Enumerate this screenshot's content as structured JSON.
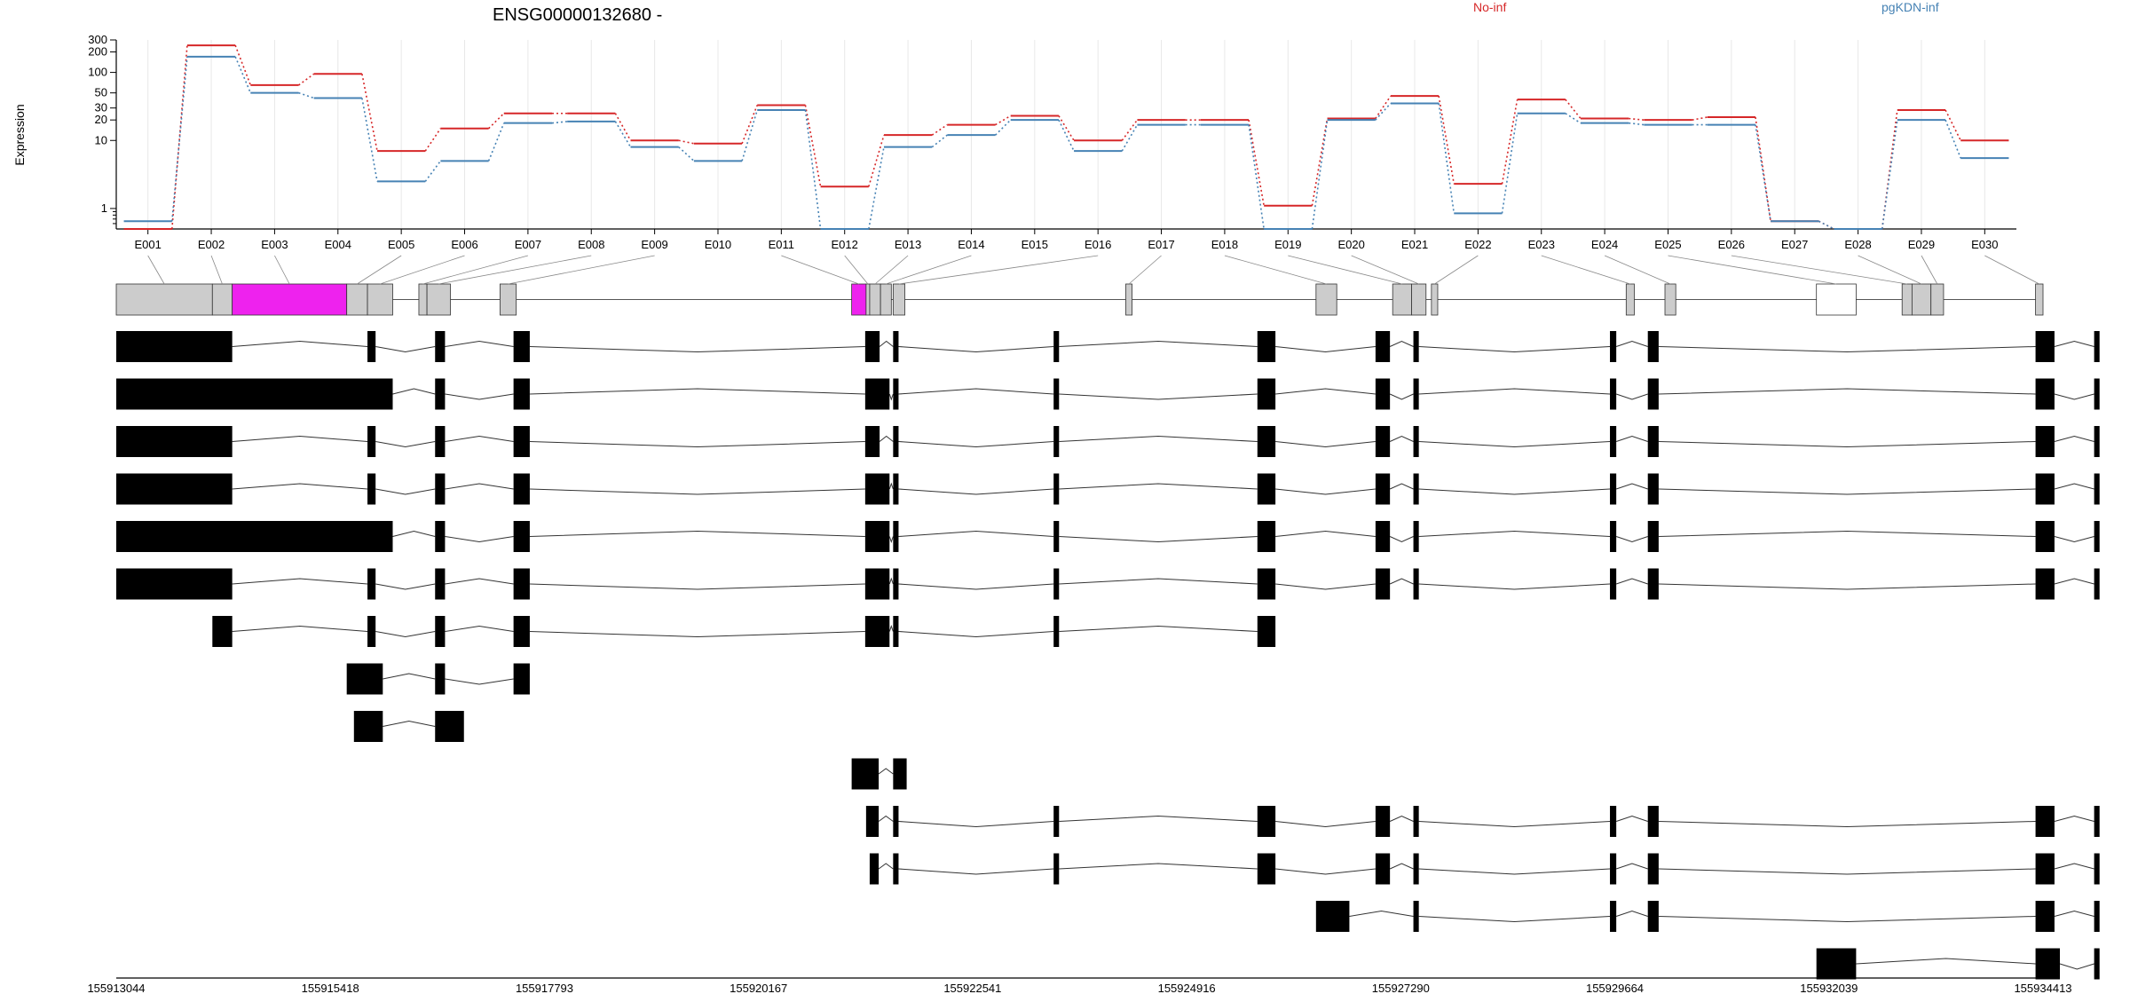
{
  "chart_data": {
    "type": "line",
    "title": "ENSG00000132680 -",
    "ylabel": "Expression",
    "yscale": "log",
    "ylim": [
      0.5,
      300
    ],
    "yticks": [
      "1",
      "10",
      "20",
      "30",
      "50",
      "100",
      "200",
      "300"
    ],
    "ytick_values": [
      1,
      10,
      20,
      30,
      50,
      100,
      200,
      300
    ],
    "categories": [
      "E001",
      "E002",
      "E003",
      "E004",
      "E005",
      "E006",
      "E007",
      "E008",
      "E009",
      "E010",
      "E011",
      "E012",
      "E013",
      "E014",
      "E015",
      "E016",
      "E017",
      "E018",
      "E019",
      "E020",
      "E021",
      "E022",
      "E023",
      "E024",
      "E025",
      "E026",
      "E027",
      "E028",
      "E029",
      "E030"
    ],
    "legend_position": "top",
    "series": [
      {
        "name": "No-inf",
        "color": "#d62728",
        "values": [
          0.5,
          250,
          65,
          95,
          7,
          15,
          25,
          25,
          10,
          9,
          33,
          2.1,
          12,
          17,
          23,
          10,
          20,
          20,
          1.1,
          21,
          45,
          2.3,
          40,
          21,
          20,
          22,
          0.65,
          0.5,
          28,
          10
        ]
      },
      {
        "name": "pgKDN-inf",
        "color": "#4682b4",
        "values": [
          0.65,
          170,
          50,
          42,
          2.5,
          5,
          18,
          19,
          8,
          5,
          28,
          0.5,
          8,
          12,
          20,
          7,
          17,
          17,
          0.5,
          20,
          35,
          0.85,
          25,
          18,
          17,
          17,
          0.65,
          0.5,
          20,
          5.5
        ]
      }
    ],
    "gene_model": {
      "coordinate_ticks": [
        "155913044",
        "155915418",
        "155917793",
        "155920167",
        "155922541",
        "155924916",
        "155927290",
        "155929664",
        "155932039",
        "155934413"
      ],
      "coordinate_values": [
        155913044,
        155915418,
        155917793,
        155920167,
        155922541,
        155924916,
        155927290,
        155929664,
        155932039,
        155934413
      ],
      "exon_bins": [
        [
          155913044,
          155914110
        ],
        [
          155914110,
          155914330
        ],
        [
          155914330,
          155915600
        ],
        [
          155915600,
          155915830
        ],
        [
          155915830,
          155916110
        ],
        [
          155916400,
          155916490
        ],
        [
          155916490,
          155916750
        ],
        [
          155917300,
          155917480
        ],
        [
          155921200,
          155921360
        ],
        [
          155921360,
          155921400
        ],
        [
          155921400,
          155921520
        ],
        [
          155921520,
          155921640
        ],
        [
          155921660,
          155921790
        ],
        [
          155924240,
          155924310
        ],
        [
          155926350,
          155926580
        ],
        [
          155927200,
          155927410
        ],
        [
          155927410,
          155927570
        ],
        [
          155927630,
          155927700
        ],
        [
          155929790,
          155929880
        ],
        [
          155930220,
          155930340
        ],
        [
          155931900,
          155932340
        ],
        [
          155932850,
          155932960
        ],
        [
          155932960,
          155933170
        ],
        [
          155933170,
          155933310
        ],
        [
          155934330,
          155934413
        ]
      ],
      "bin_colors": [
        "#cccccc",
        "#cccccc",
        "#ee22ee",
        "#cccccc",
        "#cccccc",
        "#cccccc",
        "#cccccc",
        "#cccccc",
        "#ee22ee",
        "#cccccc",
        "#cccccc",
        "#cccccc",
        "#cccccc",
        "#cccccc",
        "#cccccc",
        "#cccccc",
        "#cccccc",
        "#cccccc",
        "#cccccc",
        "#cccccc",
        "#ffffff",
        "#cccccc",
        "#cccccc",
        "#cccccc",
        "#cccccc"
      ],
      "transcripts": [
        [
          [
            155913044,
            155914330
          ],
          [
            155915830,
            155915920
          ],
          [
            155916580,
            155916690
          ],
          [
            155917450,
            155917630
          ],
          [
            155921350,
            155921510
          ],
          [
            155921660,
            155921720
          ],
          [
            155923440,
            155923500
          ],
          [
            155925700,
            155925900
          ],
          [
            155927010,
            155927170
          ],
          [
            155927430,
            155927490
          ],
          [
            155929610,
            155929680
          ],
          [
            155930030,
            155930150
          ],
          [
            155934330,
            155934540
          ],
          [
            155934980,
            155935040
          ]
        ],
        [
          [
            155913044,
            155916110
          ],
          [
            155916580,
            155916690
          ],
          [
            155917450,
            155917630
          ],
          [
            155921350,
            155921620
          ],
          [
            155921660,
            155921720
          ],
          [
            155923440,
            155923500
          ],
          [
            155925700,
            155925900
          ],
          [
            155927010,
            155927170
          ],
          [
            155927430,
            155927490
          ],
          [
            155929610,
            155929680
          ],
          [
            155930030,
            155930150
          ],
          [
            155934330,
            155934540
          ],
          [
            155934980,
            155935040
          ]
        ],
        [
          [
            155913044,
            155914330
          ],
          [
            155915830,
            155915920
          ],
          [
            155916580,
            155916690
          ],
          [
            155917450,
            155917630
          ],
          [
            155921350,
            155921510
          ],
          [
            155921660,
            155921720
          ],
          [
            155923440,
            155923500
          ],
          [
            155925700,
            155925900
          ],
          [
            155927010,
            155927170
          ],
          [
            155927430,
            155927490
          ],
          [
            155929610,
            155929680
          ],
          [
            155930030,
            155930150
          ],
          [
            155934330,
            155934540
          ],
          [
            155934980,
            155935040
          ]
        ],
        [
          [
            155913044,
            155914330
          ],
          [
            155915830,
            155915920
          ],
          [
            155916580,
            155916690
          ],
          [
            155917450,
            155917630
          ],
          [
            155921350,
            155921620
          ],
          [
            155921660,
            155921720
          ],
          [
            155923440,
            155923500
          ],
          [
            155925700,
            155925900
          ],
          [
            155927010,
            155927170
          ],
          [
            155927430,
            155927490
          ],
          [
            155929610,
            155929680
          ],
          [
            155930030,
            155930150
          ],
          [
            155934330,
            155934540
          ],
          [
            155934980,
            155935040
          ]
        ],
        [
          [
            155913044,
            155916110
          ],
          [
            155916580,
            155916690
          ],
          [
            155917450,
            155917630
          ],
          [
            155921350,
            155921620
          ],
          [
            155921660,
            155921720
          ],
          [
            155923440,
            155923500
          ],
          [
            155925700,
            155925900
          ],
          [
            155927010,
            155927170
          ],
          [
            155927430,
            155927490
          ],
          [
            155929610,
            155929680
          ],
          [
            155930030,
            155930150
          ],
          [
            155934330,
            155934540
          ],
          [
            155934980,
            155935040
          ]
        ],
        [
          [
            155913044,
            155914330
          ],
          [
            155915830,
            155915920
          ],
          [
            155916580,
            155916690
          ],
          [
            155917450,
            155917630
          ],
          [
            155921350,
            155921620
          ],
          [
            155921660,
            155921720
          ],
          [
            155923440,
            155923500
          ],
          [
            155925700,
            155925900
          ],
          [
            155927010,
            155927170
          ],
          [
            155927430,
            155927490
          ],
          [
            155929610,
            155929680
          ],
          [
            155930030,
            155930150
          ],
          [
            155934330,
            155934540
          ],
          [
            155934980,
            155935040
          ]
        ],
        [
          [
            155914110,
            155914330
          ],
          [
            155915830,
            155915920
          ],
          [
            155916580,
            155916690
          ],
          [
            155917450,
            155917630
          ],
          [
            155921350,
            155921620
          ],
          [
            155921660,
            155921720
          ],
          [
            155923440,
            155923500
          ],
          [
            155925700,
            155925900
          ]
        ],
        [
          [
            155915600,
            155916000
          ],
          [
            155916580,
            155916690
          ],
          [
            155917450,
            155917630
          ]
        ],
        [
          [
            155915680,
            155916000
          ],
          [
            155916580,
            155916900
          ]
        ],
        [
          [
            155921200,
            155921500
          ],
          [
            155921660,
            155921810
          ]
        ],
        [
          [
            155921360,
            155921500
          ],
          [
            155921660,
            155921720
          ],
          [
            155923440,
            155923500
          ],
          [
            155925700,
            155925900
          ],
          [
            155927010,
            155927170
          ],
          [
            155927430,
            155927490
          ],
          [
            155929610,
            155929680
          ],
          [
            155930030,
            155930150
          ],
          [
            155934330,
            155934540
          ],
          [
            155934980,
            155935040
          ]
        ],
        [
          [
            155921400,
            155921500
          ],
          [
            155921660,
            155921720
          ],
          [
            155923440,
            155923500
          ],
          [
            155925700,
            155925900
          ],
          [
            155927010,
            155927170
          ],
          [
            155927430,
            155927490
          ],
          [
            155929610,
            155929680
          ],
          [
            155930030,
            155930150
          ],
          [
            155934330,
            155934540
          ],
          [
            155934980,
            155935040
          ]
        ],
        [
          [
            155926350,
            155926720
          ],
          [
            155927430,
            155927490
          ],
          [
            155929610,
            155929680
          ],
          [
            155930030,
            155930150
          ],
          [
            155934330,
            155934540
          ],
          [
            155934980,
            155935040
          ]
        ],
        [
          [
            155931900,
            155932340
          ],
          [
            155934330,
            155934600
          ],
          [
            155934980,
            155935040
          ]
        ]
      ]
    }
  }
}
